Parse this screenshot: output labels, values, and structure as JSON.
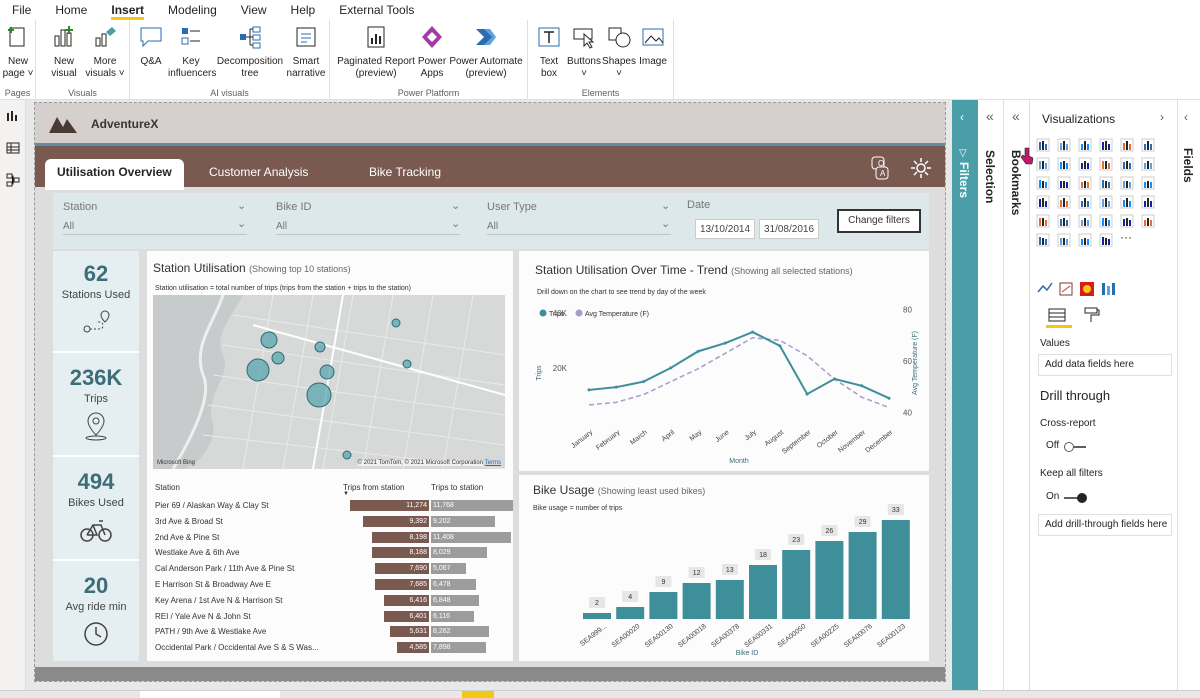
{
  "menu": [
    "File",
    "Home",
    "Insert",
    "Modeling",
    "View",
    "Help",
    "External Tools"
  ],
  "active_menu": "Insert",
  "ribbon": {
    "groups": [
      {
        "label": "Pages",
        "buttons": [
          "New page"
        ]
      },
      {
        "label": "Visuals",
        "buttons": [
          "New visual",
          "More visuals"
        ]
      },
      {
        "label": "AI visuals",
        "buttons": [
          "Q&A",
          "Key influencers",
          "Decomposition tree",
          "Smart narrative"
        ]
      },
      {
        "label": "Power Platform",
        "buttons": [
          "Paginated Report (preview)",
          "Power Apps",
          "Power Automate (preview)"
        ]
      },
      {
        "label": "Elements",
        "buttons": [
          "Text box",
          "Buttons",
          "Shapes",
          "Image"
        ]
      }
    ],
    "labels": {
      "new": "New",
      "page": "page",
      "new2": "New",
      "visual": "visual",
      "more": "More",
      "visuals": "visuals",
      "qa": "Q&A",
      "key": "Key",
      "influencers": "influencers",
      "decomp": "Decomposition",
      "tree": "tree",
      "smart": "Smart",
      "narrative": "narrative",
      "paginated": "Paginated Report",
      "preview": "(preview)",
      "power": "Power",
      "apps": "Apps",
      "pautomate": "Power Automate",
      "preview2": "(preview)",
      "text": "Text",
      "box": "box",
      "buttons": "Buttons",
      "shapes": "Shapes",
      "image": "Image",
      "g_pages": "Pages",
      "g_visuals": "Visuals",
      "g_ai": "AI visuals",
      "g_pp": "Power Platform",
      "g_el": "Elements"
    }
  },
  "report": {
    "brand": "AdventureX",
    "tabs": [
      "Utilisation Overview",
      "Customer Analysis",
      "Bike Tracking"
    ],
    "slicers": {
      "station_label": "Station",
      "station_value": "All",
      "bike_label": "Bike ID",
      "bike_value": "All",
      "user_label": "User Type",
      "user_value": "All",
      "date_label": "Date",
      "date_from": "13/10/2014",
      "date_to": "31/08/2016",
      "change_filters": "Change filters"
    },
    "kpis": [
      {
        "value": "62",
        "label": "Stations Used",
        "icon": "map-pin-route-icon"
      },
      {
        "value": "236K",
        "label": "Trips",
        "icon": "location-pin-icon"
      },
      {
        "value": "494",
        "label": "Bikes Used",
        "icon": "bicycle-icon"
      },
      {
        "value": "20",
        "label": "Avg ride min",
        "icon": "clock-icon"
      }
    ],
    "station_util": {
      "title": "Station Utilisation",
      "title_note": "(Showing top 10 stations)",
      "subtitle": "Station utilisation = total number of trips (trips from the station + trips to the station)",
      "map_credit": "© 2021 TomTom, © 2021 Microsoft Corporation",
      "map_terms": "Terms",
      "map_logo": "Microsoft Bing",
      "table_headers": [
        "Station",
        "Trips from station",
        "Trips to station"
      ],
      "rows": [
        {
          "station": "Pier 69 / Alaskan Way & Clay St",
          "from": "11,274",
          "to": "11,768"
        },
        {
          "station": "3rd Ave & Broad St",
          "from": "9,392",
          "to": "9,202"
        },
        {
          "station": "2nd Ave & Pine St",
          "from": "8,198",
          "to": "11,408"
        },
        {
          "station": "Westlake Ave & 6th Ave",
          "from": "8,188",
          "to": "8,029"
        },
        {
          "station": "Cal Anderson Park / 11th Ave & Pine St",
          "from": "7,690",
          "to": "5,067"
        },
        {
          "station": "E Harrison St & Broadway Ave E",
          "from": "7,685",
          "to": "6,478"
        },
        {
          "station": "Key Arena / 1st Ave N & Harrison St",
          "from": "6,416",
          "to": "6,848"
        },
        {
          "station": "REI / Yale Ave N & John St",
          "from": "6,401",
          "to": "6,116"
        },
        {
          "station": "PATH / 9th Ave & Westlake Ave",
          "from": "5,631",
          "to": "8,262"
        },
        {
          "station": "Occidental Park / Occidental Ave S & S Was...",
          "from": "4,585",
          "to": "7,898"
        }
      ]
    },
    "trend": {
      "title": "Station Utilisation Over Time - Trend",
      "title_note": "(Showing all selected stations)",
      "subtitle": "Drill down on the chart to see trend by day of the week",
      "legend_trips": "Trips",
      "legend_temp": "Avg Temperature (F)",
      "xlabel": "Month",
      "ylabel_left": "Trips",
      "ylabel_right": "Avg Temperature (F)"
    },
    "bike_usage": {
      "title": "Bike Usage",
      "title_note": "(Showing least used bikes)",
      "subtitle": "Bike usage = number of trips",
      "xlabel": "Bike ID"
    }
  },
  "chart_data": [
    {
      "type": "line",
      "categories": [
        "January",
        "February",
        "March",
        "April",
        "May",
        "June",
        "July",
        "August",
        "September",
        "October",
        "November",
        "December"
      ],
      "series": [
        {
          "name": "Trips",
          "values": [
            12000,
            13000,
            15000,
            20000,
            26000,
            29000,
            33000,
            28000,
            10500,
            16000,
            13500,
            9000
          ]
        },
        {
          "name": "Avg Temperature (F)",
          "axis": "right",
          "values": [
            43,
            44,
            47,
            52,
            57,
            63,
            69,
            68,
            62,
            53,
            46,
            42
          ]
        }
      ],
      "title": "Station Utilisation Over Time - Trend",
      "xlabel": "Month",
      "ylabel": "Trips",
      "y_ticks": [
        "20K",
        "40K"
      ],
      "ylim": [
        0,
        45000
      ],
      "y2_ticks": [
        40,
        60,
        80
      ],
      "y2lim": [
        36,
        84
      ],
      "legend": "top-left"
    },
    {
      "type": "bar",
      "categories": [
        "SEA999...",
        "SEA00020",
        "SEA00130",
        "SEA00018",
        "SEA00378",
        "SEA00331",
        "SEA00050",
        "SEA00225",
        "SEA00076",
        "SEA00123"
      ],
      "values": [
        2,
        4,
        9,
        12,
        13,
        18,
        23,
        26,
        29,
        33
      ],
      "title": "Bike Usage",
      "xlabel": "Bike ID",
      "ylim": [
        0,
        36
      ]
    },
    {
      "type": "bar",
      "orientation": "horizontal",
      "categories": [
        "Pier 69 / Alaskan Way & Clay St",
        "3rd Ave & Broad St",
        "2nd Ave & Pine St",
        "Westlake Ave & 6th Ave",
        "Cal Anderson Park / 11th Ave & Pine St",
        "E Harrison St & Broadway Ave E",
        "Key Arena / 1st Ave N & Harrison St",
        "REI / Yale Ave N & John St",
        "PATH / 9th Ave & Westlake Ave",
        "Occidental Park / Occidental Ave S & S Was..."
      ],
      "series": [
        {
          "name": "Trips from station",
          "values": [
            11274,
            9392,
            8198,
            8188,
            7690,
            7685,
            6416,
            6401,
            5631,
            4585
          ]
        },
        {
          "name": "Trips to station",
          "values": [
            11768,
            9202,
            11408,
            8029,
            5067,
            6478,
            6848,
            6116,
            8262,
            7898
          ]
        }
      ],
      "xlim": [
        0,
        12000
      ]
    }
  ],
  "panes": {
    "filters": "Filters",
    "selection": "Selection",
    "bookmarks": "Bookmarks",
    "visualizations": "Visualizations",
    "fields": "Fields",
    "values_label": "Values",
    "add_data": "Add data fields here",
    "drill_through": "Drill through",
    "cross_report": "Cross-report",
    "cross_state": "Off",
    "keep_filters": "Keep all filters",
    "keep_state": "On",
    "add_drill": "Add drill-through fields here"
  },
  "colors": {
    "accent": "#4a9ea8",
    "brown": "#7a5a50",
    "bar_teal": "#3f8f9a",
    "bar_brown": "#7a5a50",
    "bar_gray": "#9c9c9c",
    "yellow": "#f2c811"
  }
}
